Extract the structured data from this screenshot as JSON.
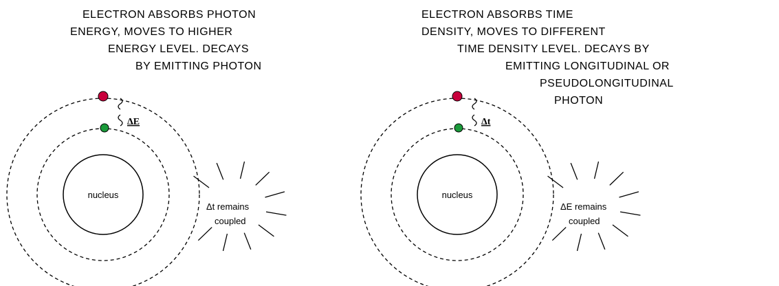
{
  "panels": [
    {
      "caption": [
        "ELECTRON ABSORBS PHOTON",
        "ENERGY, MOVES TO HIGHER",
        "ENERGY LEVEL.  DECAYS",
        "BY EMITTING PHOTON"
      ],
      "gap_label": "ΔE",
      "nucleus": "nucleus",
      "coupled": [
        "Δt remains",
        "coupled"
      ]
    },
    {
      "caption": [
        "ELECTRON ABSORBS TIME",
        "DENSITY, MOVES TO DIFFERENT",
        "TIME DENSITY LEVEL.  DECAYS BY",
        "EMITTING LONGITUDINAL OR",
        "PSEUDOLONGITUDINAL",
        "PHOTON"
      ],
      "gap_label": "Δt",
      "nucleus": "nucleus",
      "coupled": [
        "ΔE remains",
        "coupled"
      ]
    }
  ]
}
